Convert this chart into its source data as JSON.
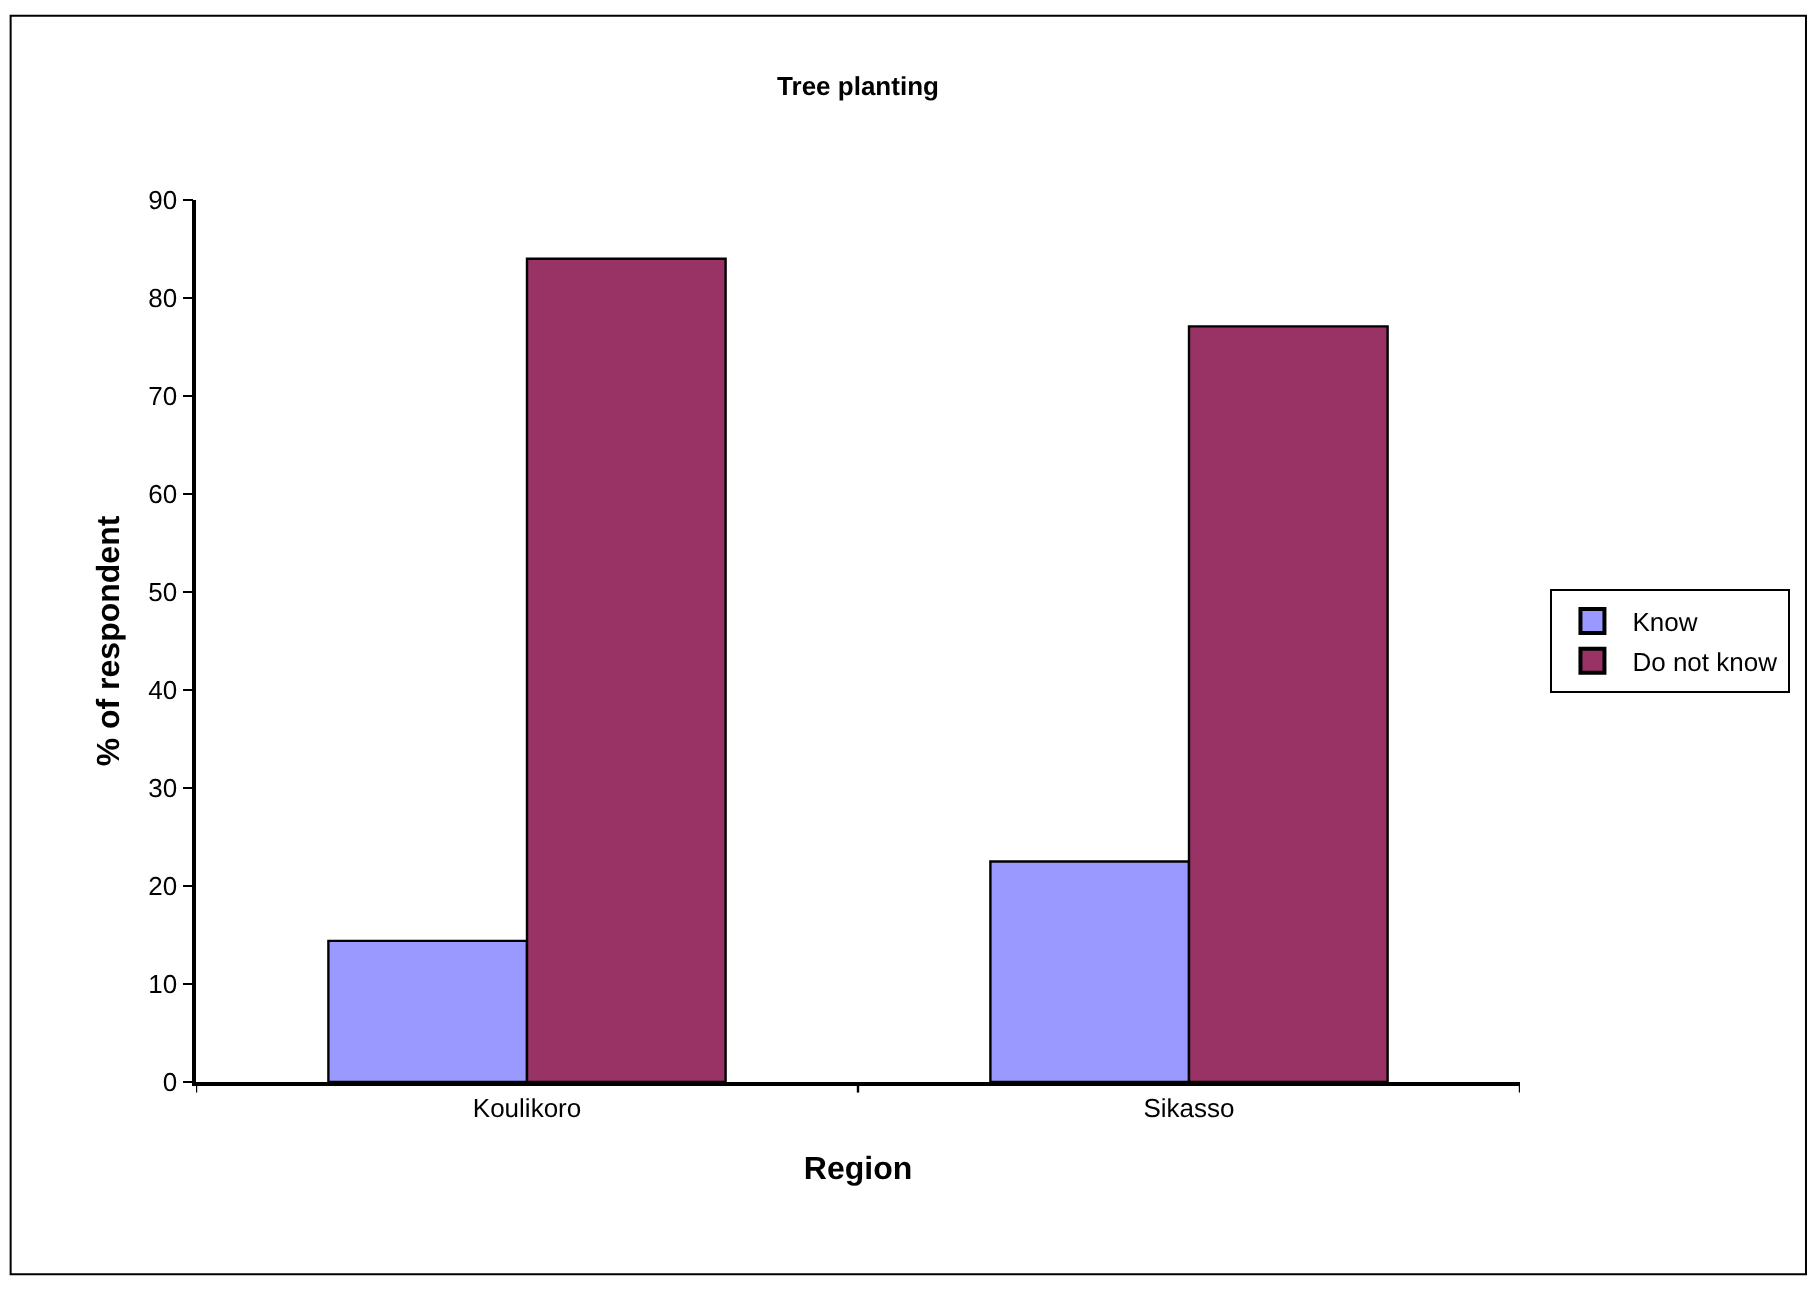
{
  "chart_data": {
    "type": "bar",
    "title": "Tree planting",
    "xlabel": "Region",
    "ylabel": "% of respondent",
    "categories": [
      "Koulikoro",
      "Sikasso"
    ],
    "series": [
      {
        "name": "Know",
        "color": "#9999ff",
        "values": [
          14.4,
          22.5
        ]
      },
      {
        "name": "Do not know",
        "color": "#993366",
        "values": [
          84.0,
          77.1
        ]
      }
    ],
    "ylim": [
      0,
      90
    ],
    "yticks": [
      0,
      10,
      20,
      30,
      40,
      50,
      60,
      70,
      80,
      90
    ],
    "legend": "right"
  }
}
